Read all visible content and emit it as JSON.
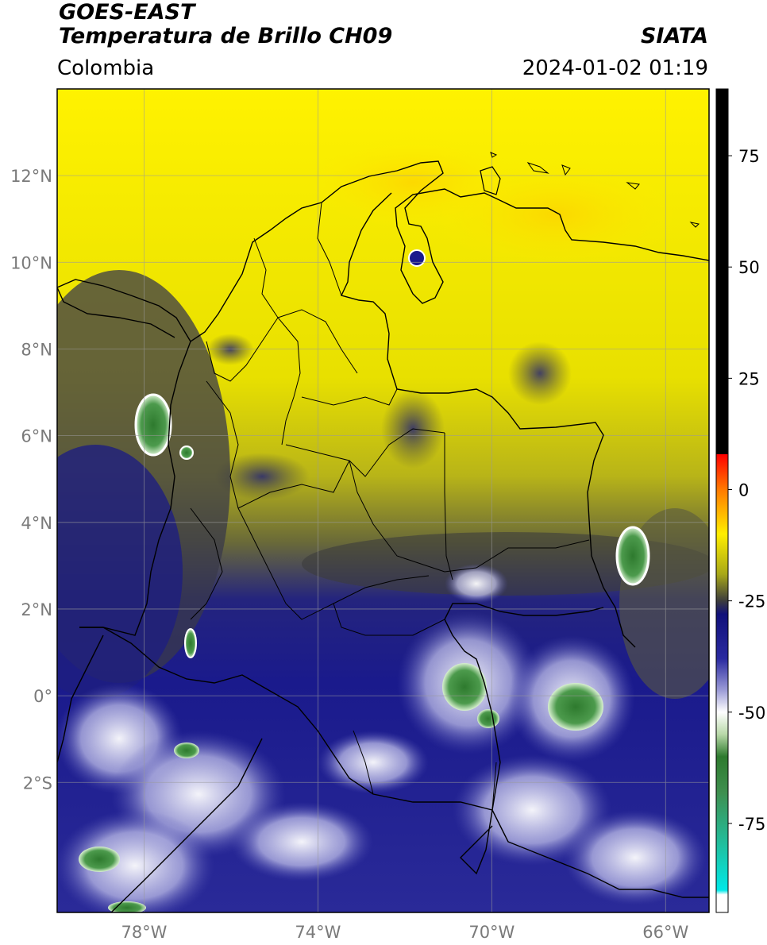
{
  "header": {
    "satellite": "GOES-EAST",
    "product": "Temperatura de Brillo CH09",
    "region": "Colombia",
    "agency": "SIATA",
    "datetime": "2024-01-02 01:19"
  },
  "map": {
    "lon_range": [
      -80,
      -65
    ],
    "lat_range": [
      -5,
      14
    ],
    "lat_ticks": [
      {
        "value": 12,
        "label": "12°N"
      },
      {
        "value": 10,
        "label": "10°N"
      },
      {
        "value": 8,
        "label": "8°N"
      },
      {
        "value": 6,
        "label": "6°N"
      },
      {
        "value": 4,
        "label": "4°N"
      },
      {
        "value": 2,
        "label": "2°N"
      },
      {
        "value": 0,
        "label": "0°"
      },
      {
        "value": -2,
        "label": "2°S"
      }
    ],
    "lon_ticks": [
      {
        "value": -78,
        "label": "78°W"
      },
      {
        "value": -74,
        "label": "74°W"
      },
      {
        "value": -70,
        "label": "70°W"
      },
      {
        "value": -66,
        "label": "66°W"
      }
    ],
    "grid": true
  },
  "colorbar": {
    "range": [
      -95,
      90
    ],
    "ticks": [
      {
        "value": 75,
        "label": "75"
      },
      {
        "value": 50,
        "label": "50"
      },
      {
        "value": 25,
        "label": "25"
      },
      {
        "value": 0,
        "label": "0"
      },
      {
        "value": -25,
        "label": "-25"
      },
      {
        "value": -50,
        "label": "-50"
      },
      {
        "value": -75,
        "label": "-75"
      }
    ],
    "stops": [
      {
        "value": 90,
        "color": "#000000"
      },
      {
        "value": 8,
        "color": "#000000"
      },
      {
        "value": 7.9,
        "color": "#ff0000"
      },
      {
        "value": 0,
        "color": "#ff7a00"
      },
      {
        "value": -10,
        "color": "#ffee00"
      },
      {
        "value": -19,
        "color": "#a8a818"
      },
      {
        "value": -25,
        "color": "#3c3c3c"
      },
      {
        "value": -28,
        "color": "#10107a"
      },
      {
        "value": -38,
        "color": "#2a2aa0"
      },
      {
        "value": -45,
        "color": "#9a9ad6"
      },
      {
        "value": -50,
        "color": "#ffffff"
      },
      {
        "value": -55,
        "color": "#b8d8a8"
      },
      {
        "value": -60,
        "color": "#2e7a2e"
      },
      {
        "value": -68,
        "color": "#3f8f4f"
      },
      {
        "value": -80,
        "color": "#20c0a0"
      },
      {
        "value": -90,
        "color": "#00e8e8"
      },
      {
        "value": -91,
        "color": "#ffffff"
      },
      {
        "value": -95,
        "color": "#ffffff"
      }
    ]
  }
}
